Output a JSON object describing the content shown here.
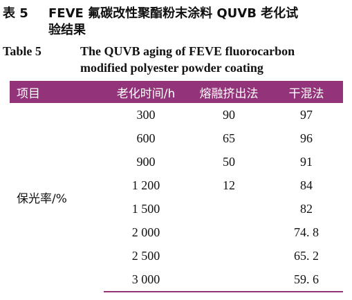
{
  "caption_zh": {
    "label": "表 5",
    "line1": "FEVE 氟碳改性聚酯粉末涂料 QUVB 老化试",
    "line2": "验结果"
  },
  "caption_en": {
    "label": "Table 5",
    "line1": "The QUVB aging of FEVE fluorocarbon",
    "line2": "modified polyester powder coating"
  },
  "table": {
    "headers": [
      "项目",
      "老化时间/h",
      "熔融挤出法",
      "干混法"
    ],
    "row_label": "保光率/%",
    "rows": [
      {
        "time": "300",
        "melt": "90",
        "dry": "97"
      },
      {
        "time": "600",
        "melt": "65",
        "dry": "96"
      },
      {
        "time": "900",
        "melt": "50",
        "dry": "91"
      },
      {
        "time": "1 200",
        "melt": "12",
        "dry": "84"
      },
      {
        "time": "1 500",
        "melt": "",
        "dry": "82"
      },
      {
        "time": "2 000",
        "melt": "",
        "dry": "74. 8"
      },
      {
        "time": "2 500",
        "melt": "",
        "dry": "65. 2"
      },
      {
        "time": "3 000",
        "melt": "",
        "dry": "59. 6"
      }
    ]
  },
  "colors": {
    "header_bg": "#93337a",
    "header_text": "#ffffff"
  }
}
